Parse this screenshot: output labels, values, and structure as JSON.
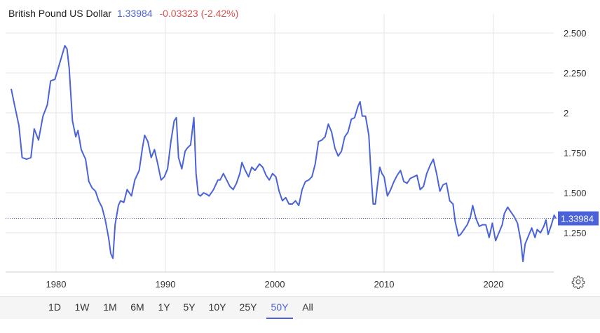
{
  "header": {
    "name": "British Pound US Dollar",
    "price": "1.33984",
    "change": "-0.03323 (-2.42%)"
  },
  "colors": {
    "line": "#4a63d9",
    "negative": "#d9534f",
    "grid": "#e6e6e6"
  },
  "ranges": {
    "options": [
      "1D",
      "1W",
      "1M",
      "6M",
      "1Y",
      "5Y",
      "10Y",
      "25Y",
      "50Y",
      "All"
    ],
    "selected": "50Y"
  },
  "icons": {
    "settings": "gear-icon"
  },
  "chart_data": {
    "type": "line",
    "title": "British Pound US Dollar",
    "xlabel": "",
    "ylabel": "",
    "x_ticks": [
      "1980",
      "1990",
      "2000",
      "2010",
      "2020"
    ],
    "y_ticks": [
      "2.500",
      "2.250",
      "2",
      "1.750",
      "1.500",
      "1.250"
    ],
    "ylim": [
      1.0,
      2.6
    ],
    "xlim": [
      1975.8,
      2025.8
    ],
    "grid": true,
    "last_value": 1.33984,
    "last_label": "1.33984",
    "series": [
      {
        "values": [
          [
            1975.9,
            2.15
          ],
          [
            1976.2,
            2.05
          ],
          [
            1976.6,
            1.92
          ],
          [
            1976.9,
            1.72
          ],
          [
            1977.3,
            1.71
          ],
          [
            1977.7,
            1.72
          ],
          [
            1978.0,
            1.9
          ],
          [
            1978.4,
            1.83
          ],
          [
            1978.8,
            1.98
          ],
          [
            1979.2,
            2.05
          ],
          [
            1979.5,
            2.2
          ],
          [
            1979.9,
            2.21
          ],
          [
            1980.2,
            2.28
          ],
          [
            1980.5,
            2.35
          ],
          [
            1980.8,
            2.42
          ],
          [
            1981.0,
            2.4
          ],
          [
            1981.2,
            2.28
          ],
          [
            1981.5,
            1.95
          ],
          [
            1981.8,
            1.85
          ],
          [
            1982.0,
            1.89
          ],
          [
            1982.3,
            1.77
          ],
          [
            1982.7,
            1.71
          ],
          [
            1983.0,
            1.57
          ],
          [
            1983.3,
            1.53
          ],
          [
            1983.6,
            1.51
          ],
          [
            1983.9,
            1.45
          ],
          [
            1984.2,
            1.41
          ],
          [
            1984.5,
            1.33
          ],
          [
            1984.8,
            1.22
          ],
          [
            1985.0,
            1.12
          ],
          [
            1985.2,
            1.09
          ],
          [
            1985.4,
            1.3
          ],
          [
            1985.7,
            1.42
          ],
          [
            1985.9,
            1.45
          ],
          [
            1986.2,
            1.44
          ],
          [
            1986.5,
            1.52
          ],
          [
            1986.9,
            1.48
          ],
          [
            1987.2,
            1.58
          ],
          [
            1987.6,
            1.64
          ],
          [
            1987.9,
            1.78
          ],
          [
            1988.1,
            1.86
          ],
          [
            1988.4,
            1.82
          ],
          [
            1988.7,
            1.72
          ],
          [
            1989.0,
            1.77
          ],
          [
            1989.3,
            1.68
          ],
          [
            1989.6,
            1.58
          ],
          [
            1989.9,
            1.6
          ],
          [
            1990.2,
            1.65
          ],
          [
            1990.5,
            1.82
          ],
          [
            1990.8,
            1.95
          ],
          [
            1991.0,
            1.97
          ],
          [
            1991.2,
            1.72
          ],
          [
            1991.5,
            1.65
          ],
          [
            1991.8,
            1.76
          ],
          [
            1992.0,
            1.78
          ],
          [
            1992.3,
            1.8
          ],
          [
            1992.6,
            1.97
          ],
          [
            1992.8,
            1.62
          ],
          [
            1993.0,
            1.49
          ],
          [
            1993.2,
            1.48
          ],
          [
            1993.5,
            1.5
          ],
          [
            1993.8,
            1.49
          ],
          [
            1994.0,
            1.48
          ],
          [
            1994.4,
            1.52
          ],
          [
            1994.8,
            1.58
          ],
          [
            1995.0,
            1.58
          ],
          [
            1995.3,
            1.62
          ],
          [
            1995.6,
            1.58
          ],
          [
            1995.9,
            1.54
          ],
          [
            1996.2,
            1.52
          ],
          [
            1996.5,
            1.56
          ],
          [
            1996.8,
            1.62
          ],
          [
            1997.0,
            1.69
          ],
          [
            1997.3,
            1.64
          ],
          [
            1997.6,
            1.6
          ],
          [
            1997.9,
            1.66
          ],
          [
            1998.2,
            1.64
          ],
          [
            1998.6,
            1.68
          ],
          [
            1998.9,
            1.66
          ],
          [
            1999.2,
            1.61
          ],
          [
            1999.5,
            1.58
          ],
          [
            1999.8,
            1.62
          ],
          [
            2000.1,
            1.6
          ],
          [
            2000.4,
            1.51
          ],
          [
            2000.7,
            1.45
          ],
          [
            2001.0,
            1.47
          ],
          [
            2001.3,
            1.43
          ],
          [
            2001.6,
            1.43
          ],
          [
            2001.9,
            1.45
          ],
          [
            2002.2,
            1.42
          ],
          [
            2002.5,
            1.52
          ],
          [
            2002.8,
            1.57
          ],
          [
            2003.1,
            1.58
          ],
          [
            2003.4,
            1.6
          ],
          [
            2003.7,
            1.68
          ],
          [
            2004.0,
            1.82
          ],
          [
            2004.3,
            1.83
          ],
          [
            2004.6,
            1.85
          ],
          [
            2004.9,
            1.93
          ],
          [
            2005.2,
            1.88
          ],
          [
            2005.5,
            1.78
          ],
          [
            2005.8,
            1.73
          ],
          [
            2006.1,
            1.76
          ],
          [
            2006.4,
            1.85
          ],
          [
            2006.7,
            1.88
          ],
          [
            2007.0,
            1.96
          ],
          [
            2007.3,
            1.97
          ],
          [
            2007.6,
            2.04
          ],
          [
            2007.8,
            2.07
          ],
          [
            2008.0,
            1.98
          ],
          [
            2008.3,
            1.98
          ],
          [
            2008.6,
            1.86
          ],
          [
            2008.8,
            1.62
          ],
          [
            2009.0,
            1.43
          ],
          [
            2009.2,
            1.43
          ],
          [
            2009.4,
            1.55
          ],
          [
            2009.6,
            1.66
          ],
          [
            2009.8,
            1.62
          ],
          [
            2010.0,
            1.6
          ],
          [
            2010.3,
            1.48
          ],
          [
            2010.6,
            1.52
          ],
          [
            2010.9,
            1.57
          ],
          [
            2011.2,
            1.61
          ],
          [
            2011.5,
            1.64
          ],
          [
            2011.8,
            1.57
          ],
          [
            2012.1,
            1.56
          ],
          [
            2012.4,
            1.59
          ],
          [
            2012.7,
            1.6
          ],
          [
            2013.0,
            1.61
          ],
          [
            2013.3,
            1.52
          ],
          [
            2013.6,
            1.54
          ],
          [
            2013.9,
            1.62
          ],
          [
            2014.2,
            1.67
          ],
          [
            2014.5,
            1.71
          ],
          [
            2014.8,
            1.62
          ],
          [
            2015.1,
            1.51
          ],
          [
            2015.4,
            1.55
          ],
          [
            2015.7,
            1.56
          ],
          [
            2016.0,
            1.45
          ],
          [
            2016.3,
            1.43
          ],
          [
            2016.5,
            1.32
          ],
          [
            2016.8,
            1.23
          ],
          [
            2017.0,
            1.24
          ],
          [
            2017.3,
            1.27
          ],
          [
            2017.6,
            1.3
          ],
          [
            2017.9,
            1.35
          ],
          [
            2018.1,
            1.42
          ],
          [
            2018.4,
            1.34
          ],
          [
            2018.7,
            1.29
          ],
          [
            2019.0,
            1.3
          ],
          [
            2019.3,
            1.3
          ],
          [
            2019.6,
            1.22
          ],
          [
            2019.9,
            1.31
          ],
          [
            2020.2,
            1.2
          ],
          [
            2020.5,
            1.25
          ],
          [
            2020.8,
            1.3
          ],
          [
            2021.0,
            1.37
          ],
          [
            2021.3,
            1.41
          ],
          [
            2021.6,
            1.38
          ],
          [
            2021.9,
            1.35
          ],
          [
            2022.2,
            1.31
          ],
          [
            2022.5,
            1.2
          ],
          [
            2022.7,
            1.07
          ],
          [
            2022.9,
            1.18
          ],
          [
            2023.2,
            1.23
          ],
          [
            2023.5,
            1.28
          ],
          [
            2023.8,
            1.22
          ],
          [
            2024.0,
            1.27
          ],
          [
            2024.3,
            1.25
          ],
          [
            2024.6,
            1.29
          ],
          [
            2024.8,
            1.33
          ],
          [
            2025.0,
            1.24
          ],
          [
            2025.3,
            1.3
          ],
          [
            2025.55,
            1.36
          ],
          [
            2025.7,
            1.34
          ]
        ]
      }
    ]
  }
}
